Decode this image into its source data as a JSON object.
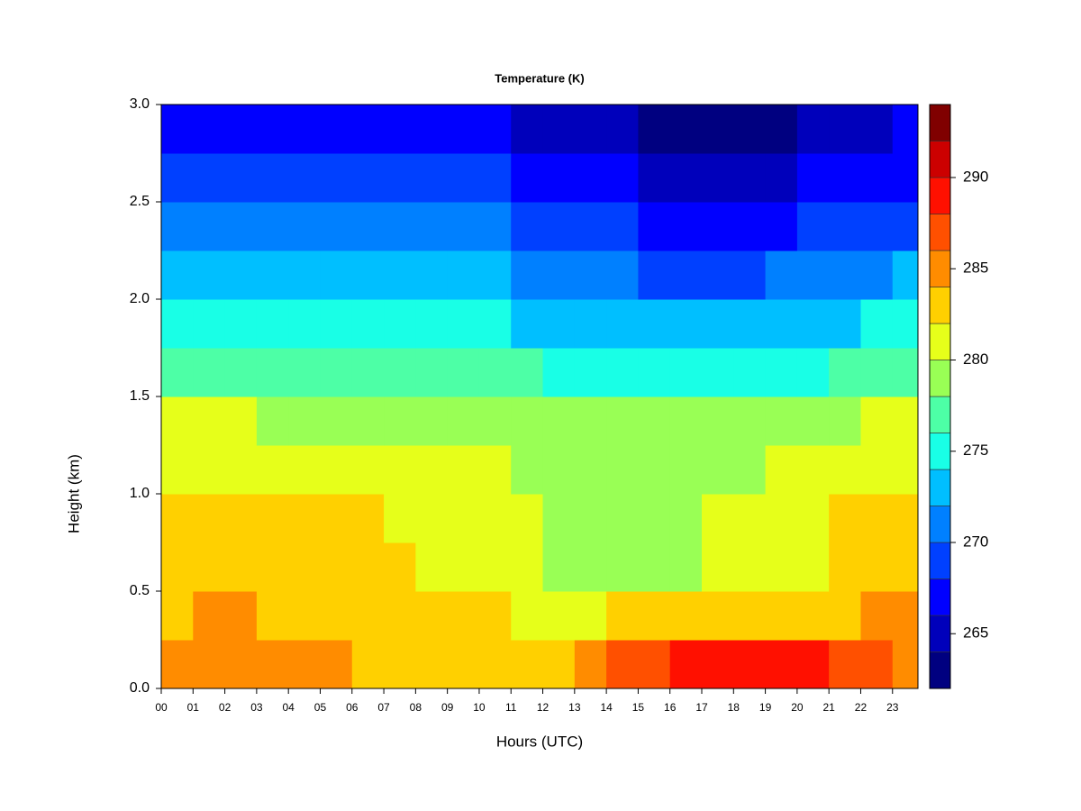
{
  "chart_data": {
    "type": "heatmap",
    "title": "Temperature (K)",
    "xlabel": "Hours (UTC)",
    "ylabel": "Height (km)",
    "xlim": [
      0,
      23.8
    ],
    "ylim": [
      0,
      3
    ],
    "xticks": [
      {
        "value": 0,
        "label": "00"
      },
      {
        "value": 1,
        "label": "01"
      },
      {
        "value": 2,
        "label": "02"
      },
      {
        "value": 3,
        "label": "03"
      },
      {
        "value": 4,
        "label": "04"
      },
      {
        "value": 5,
        "label": "05"
      },
      {
        "value": 6,
        "label": "06"
      },
      {
        "value": 7,
        "label": "07"
      },
      {
        "value": 8,
        "label": "08"
      },
      {
        "value": 9,
        "label": "09"
      },
      10,
      11,
      12,
      13,
      14,
      15,
      16,
      17,
      18,
      19,
      20,
      21,
      22,
      23
    ],
    "yticks": [
      {
        "value": 0,
        "label": "0.0"
      },
      {
        "value": 0.5,
        "label": "0.5"
      },
      {
        "value": 1,
        "label": "1.0"
      },
      {
        "value": 1.5,
        "label": "1.5"
      },
      {
        "value": 2,
        "label": "2.0"
      },
      {
        "value": 2.5,
        "label": "2.5"
      },
      {
        "value": 3,
        "label": "3.0"
      }
    ],
    "x": [
      0,
      1,
      2,
      3,
      4,
      5,
      6,
      7,
      8,
      9,
      10,
      11,
      12,
      13,
      14,
      15,
      16,
      17,
      18,
      19,
      20,
      21,
      22,
      23
    ],
    "y": [
      0,
      0.25,
      0.5,
      0.75,
      1,
      1.25,
      1.5,
      1.75,
      2,
      2.25,
      2.5,
      2.75
    ],
    "z": [
      [
        285,
        285,
        285,
        284.5,
        284.5,
        284,
        283.5,
        283,
        283,
        282.5,
        282.5,
        283,
        283.5,
        285,
        286,
        287,
        288,
        288.5,
        289,
        289,
        288.5,
        287.5,
        286.5,
        285.5
      ],
      [
        283.5,
        284,
        284,
        283.5,
        283,
        283,
        283,
        282.5,
        282,
        282,
        282,
        281.5,
        281.5,
        281.5,
        282,
        282,
        282.5,
        283,
        283,
        283,
        283,
        283.5,
        284,
        284.5
      ],
      [
        283,
        283,
        283,
        283,
        283,
        283,
        282.5,
        282,
        281.5,
        281.5,
        281,
        280,
        279.5,
        279,
        279,
        279,
        279,
        280.5,
        280.5,
        281,
        281.5,
        282.5,
        283,
        283
      ],
      [
        282.5,
        282.5,
        282.5,
        282.5,
        282.5,
        282.5,
        282,
        281.5,
        281,
        281,
        280.5,
        280,
        279.5,
        279,
        279,
        279,
        279,
        280,
        280,
        280.5,
        281,
        282,
        282.5,
        282.5
      ],
      [
        281.5,
        281.5,
        281.5,
        281,
        281,
        281,
        281,
        280.5,
        280.5,
        280.5,
        280,
        279.5,
        279.5,
        279,
        279,
        279,
        279,
        279.5,
        279.5,
        280,
        280.5,
        281,
        281.5,
        281.5
      ],
      [
        280,
        280,
        280,
        279.5,
        279.5,
        279.5,
        279.5,
        279,
        279,
        279,
        278.5,
        278.5,
        278,
        278,
        278,
        278,
        278,
        278,
        278.5,
        279,
        279,
        279.5,
        280,
        280
      ],
      [
        277.5,
        277.5,
        277,
        277,
        277,
        277,
        277,
        276.5,
        276.5,
        276.5,
        276,
        276,
        275.5,
        275,
        275,
        274.5,
        274.5,
        274.5,
        274.5,
        275,
        275.5,
        276,
        276.5,
        276.5
      ],
      [
        275,
        275,
        275,
        275,
        275,
        274.5,
        274.5,
        274.5,
        274,
        274,
        274,
        273.5,
        273,
        272.5,
        272,
        272,
        272,
        272,
        272,
        272.5,
        273,
        273.5,
        274,
        274
      ],
      [
        273,
        273,
        273,
        273,
        272.5,
        272.5,
        272.5,
        272,
        272,
        272,
        272,
        271.5,
        271,
        270.5,
        270,
        269.5,
        269.5,
        269.5,
        269.5,
        270,
        270.5,
        271,
        271.5,
        272
      ],
      [
        271,
        271,
        271,
        271,
        270.5,
        270.5,
        270.5,
        270,
        270,
        270,
        270,
        269.5,
        269,
        268.5,
        268,
        267.5,
        267,
        267,
        267,
        267.5,
        268,
        268.5,
        269,
        269.5
      ],
      [
        269,
        269,
        269,
        269,
        268.5,
        268.5,
        268,
        268,
        268,
        268,
        268,
        267.5,
        267,
        266.5,
        266,
        265.5,
        265,
        265,
        265,
        265.5,
        266,
        266.5,
        267,
        267.5
      ],
      [
        267,
        267,
        267,
        267,
        267,
        267,
        266.5,
        266.5,
        266,
        266,
        266,
        265.5,
        265,
        264.5,
        264,
        263.5,
        263.5,
        263,
        263,
        263.5,
        264,
        265,
        265.5,
        266
      ]
    ],
    "levels": [
      262,
      264,
      266,
      268,
      270,
      272,
      274,
      276,
      278,
      280,
      282,
      284,
      286,
      288,
      290,
      292,
      294
    ],
    "colors": [
      "#000080",
      "#0000bb",
      "#0000ff",
      "#0040ff",
      "#0080ff",
      "#00bfff",
      "#19ffe6",
      "#4dffa6",
      "#99ff55",
      "#e6ff1a",
      "#ffd000",
      "#ff8c00",
      "#ff5000",
      "#ff1000",
      "#cc0000",
      "#800000"
    ],
    "colorbar_ticks": [
      265,
      270,
      275,
      280,
      285,
      290
    ]
  }
}
